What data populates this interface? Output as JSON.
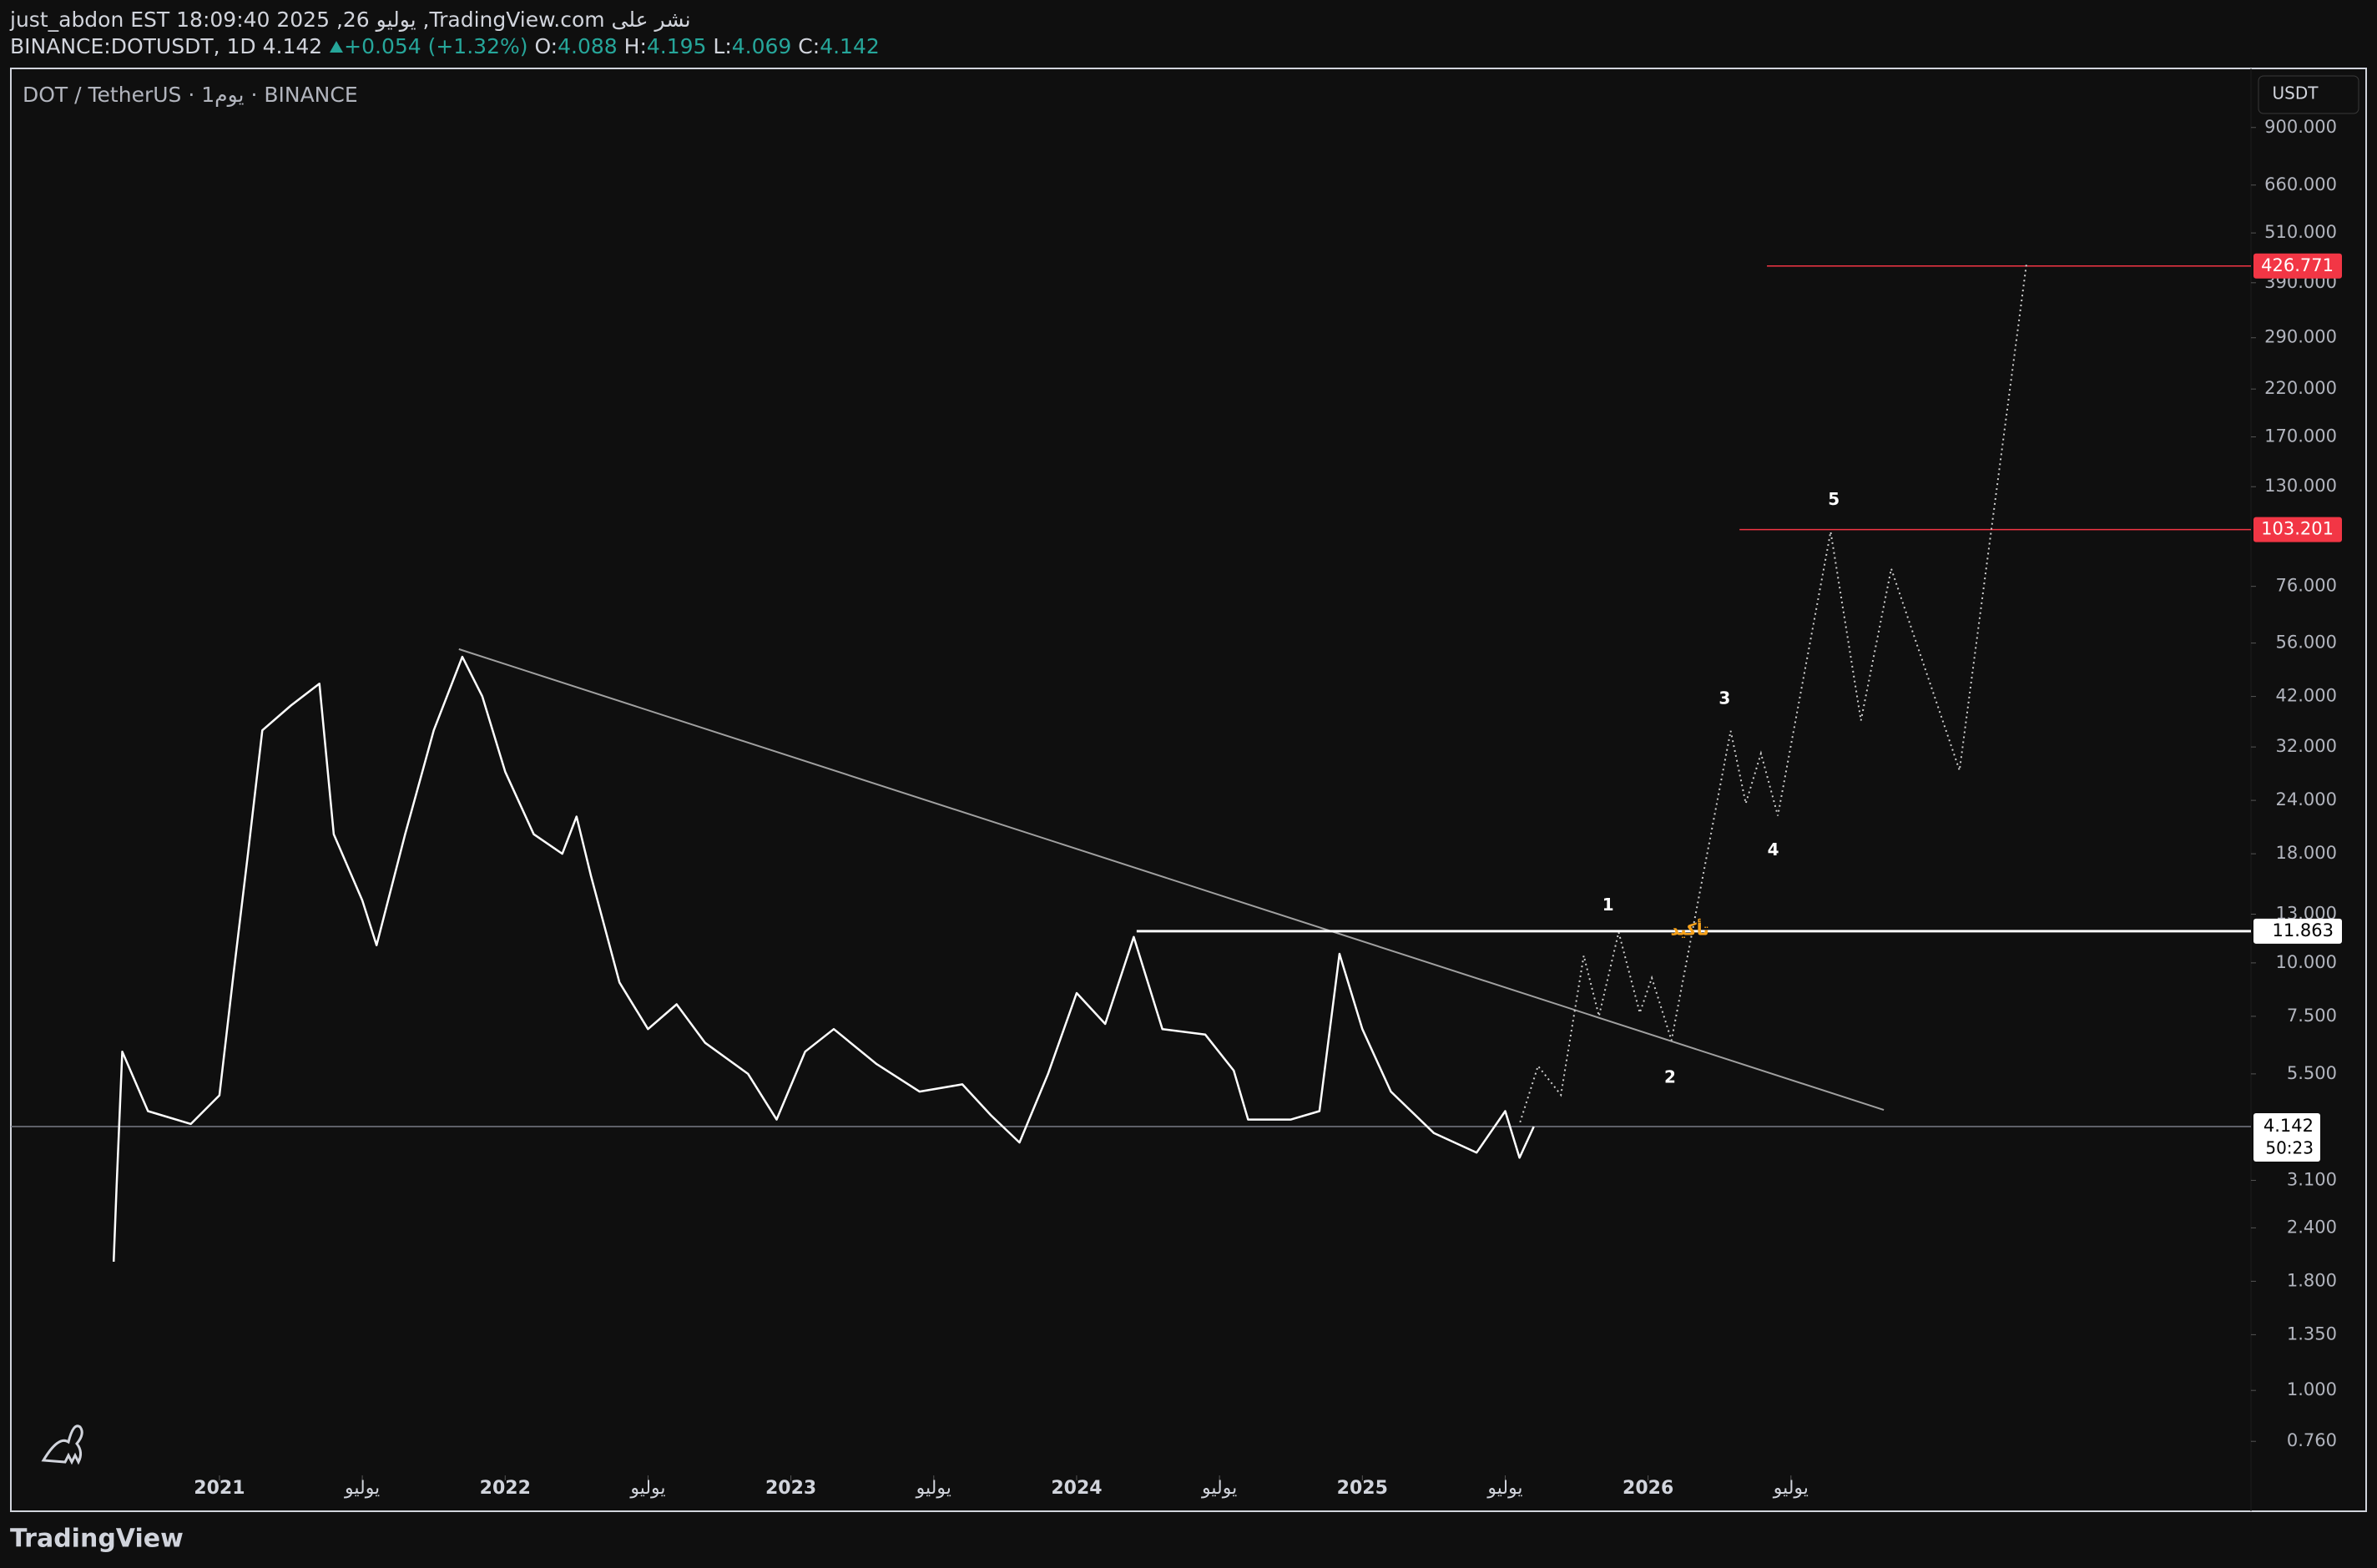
{
  "header": {
    "line1": "just_abdon EST 18:09:40 2025 ,26 يوليو ,TradingView.com نشر على",
    "symbol": "BINANCE:DOTUSDT, 1D",
    "close": "4.142",
    "change": "+0.054 (+1.32%)",
    "o_label": "O:",
    "o": "4.088",
    "h_label": "H:",
    "h": "4.195",
    "l_label": "L:",
    "l": "4.069",
    "c_label": "C:",
    "c": "4.142"
  },
  "footer": {
    "brand": "TradingView"
  },
  "chart_data": {
    "type": "line",
    "legend_text": "DOT / TetherUS · 1يوم · BINANCE",
    "currency": "USDT",
    "log_scale": true,
    "color": "#ffffff",
    "x": [
      2020.63,
      2020.64,
      2020.66,
      2020.75,
      2020.9,
      2021.0,
      2021.05,
      2021.1,
      2021.15,
      2021.25,
      2021.35,
      2021.4,
      2021.5,
      2021.55,
      2021.65,
      2021.75,
      2021.85,
      2021.92,
      2022.0,
      2022.1,
      2022.2,
      2022.25,
      2022.3,
      2022.4,
      2022.5,
      2022.6,
      2022.7,
      2022.85,
      2022.95,
      2023.05,
      2023.15,
      2023.3,
      2023.45,
      2023.6,
      2023.7,
      2023.8,
      2023.9,
      2024.0,
      2024.1,
      2024.2,
      2024.3,
      2024.45,
      2024.55,
      2024.6,
      2024.75,
      2024.85,
      2024.92,
      2025.0,
      2025.1,
      2025.25,
      2025.4,
      2025.5,
      2025.55,
      2025.6
    ],
    "values": [
      2.0,
      3.0,
      6.2,
      4.5,
      4.2,
      4.9,
      9.5,
      18,
      35,
      40,
      45,
      20,
      14,
      11,
      20,
      35,
      52,
      42,
      28,
      20,
      18,
      22,
      16,
      9,
      7,
      8,
      6.5,
      5.5,
      4.3,
      6.2,
      7.0,
      5.8,
      5.0,
      5.2,
      4.4,
      3.8,
      5.5,
      8.5,
      7.2,
      11.5,
      7.0,
      6.8,
      5.6,
      4.3,
      4.3,
      4.5,
      10.5,
      7.0,
      5.0,
      4.0,
      3.6,
      4.5,
      3.5,
      4.14
    ],
    "projection": {
      "color": "#cfcfcf",
      "dashed": true,
      "x": [
        2025.552,
        2025.615,
        2025.695,
        2025.775,
        2025.828,
        2025.897,
        2025.971,
        2026.013,
        2026.082,
        2026.289,
        2026.342,
        2026.395,
        2026.454,
        2026.639,
        2026.745,
        2026.851,
        2027.09,
        2027.324
      ],
      "values": [
        4.24,
        5.74,
        4.91,
        10.4,
        7.51,
        11.8,
        7.64,
        9.22,
        6.59,
        34.9,
        23.6,
        30.9,
        22.1,
        102,
        36.9,
        83.6,
        28.2,
        430
      ]
    },
    "trendline": {
      "color": "#a0a0a0",
      "x": [
        2021.838,
        2026.825
      ],
      "values": [
        54.2,
        4.53
      ]
    },
    "levels": [
      {
        "value": 11.863,
        "x_start": 2024.21,
        "color": "#ffffff",
        "label_bg": "#ffffff",
        "label_color": "#000000"
      },
      {
        "value": 103.201,
        "x_start": 2026.32,
        "color": "#f23645",
        "label_bg": "#f23645",
        "label_color": "#ffffff"
      },
      {
        "value": 426.771,
        "x_start": 2026.416,
        "color": "#f23645",
        "label_bg": "#f23645",
        "label_color": "#ffffff"
      }
    ],
    "last_price": {
      "value": 4.142,
      "countdown": "50:23",
      "color": "#787b86"
    },
    "annotations": [
      {
        "text": "1",
        "x": 2025.86,
        "y": 13.6,
        "color": "#ffffff"
      },
      {
        "text": "2",
        "x": 2026.077,
        "y": 5.38,
        "color": "#ffffff"
      },
      {
        "text": "3",
        "x": 2026.268,
        "y": 41.4,
        "color": "#ffffff"
      },
      {
        "text": "4",
        "x": 2026.438,
        "y": 18.3,
        "color": "#ffffff"
      },
      {
        "text": "5",
        "x": 2026.65,
        "y": 120.7,
        "color": "#ffffff"
      },
      {
        "text": "تأكيد",
        "x": 2026.146,
        "y": 11.9,
        "color": "#f7a21b"
      }
    ],
    "xlim": [
      2020.27,
      2028.11
    ],
    "xticks": [
      2021,
      {
        "value": 2021.5,
        "label": "يوليو"
      },
      2022,
      {
        "value": 2022.5,
        "label": "يوليو"
      },
      2023,
      {
        "value": 2023.5,
        "label": "يوليو"
      },
      2024,
      {
        "value": 2024.5,
        "label": "يوليو"
      },
      2025,
      {
        "value": 2025.5,
        "label": "يوليو"
      },
      2026,
      {
        "value": 2026.5,
        "label": "يوليو"
      }
    ],
    "ylim": [
      0.65,
      1237
    ],
    "yticks": [
      {
        "value": 900,
        "label": "900.000"
      },
      {
        "value": 660,
        "label": "660.000"
      },
      {
        "value": 510,
        "label": "510.000"
      },
      {
        "value": 390,
        "label": "390.000"
      },
      {
        "value": 290,
        "label": "290.000"
      },
      {
        "value": 220,
        "label": "220.000"
      },
      {
        "value": 170,
        "label": "170.000"
      },
      {
        "value": 130,
        "label": "130.000"
      },
      {
        "value": 76,
        "label": "76.000"
      },
      {
        "value": 56,
        "label": "56.000"
      },
      {
        "value": 42,
        "label": "42.000"
      },
      {
        "value": 32,
        "label": "32.000"
      },
      {
        "value": 24,
        "label": "24.000"
      },
      {
        "value": 18,
        "label": "18.000"
      },
      {
        "value": 13,
        "label": "13.000"
      },
      {
        "value": 10,
        "label": "10.000"
      },
      {
        "value": 7.5,
        "label": "7.500"
      },
      {
        "value": 5.5,
        "label": "5.500"
      },
      {
        "value": 3.1,
        "label": "3.100"
      },
      {
        "value": 2.4,
        "label": "2.400"
      },
      {
        "value": 1.8,
        "label": "1.800"
      },
      {
        "value": 1.35,
        "label": "1.350"
      },
      {
        "value": 1,
        "label": "1.000"
      },
      {
        "value": 0.76,
        "label": "0.760"
      }
    ]
  }
}
